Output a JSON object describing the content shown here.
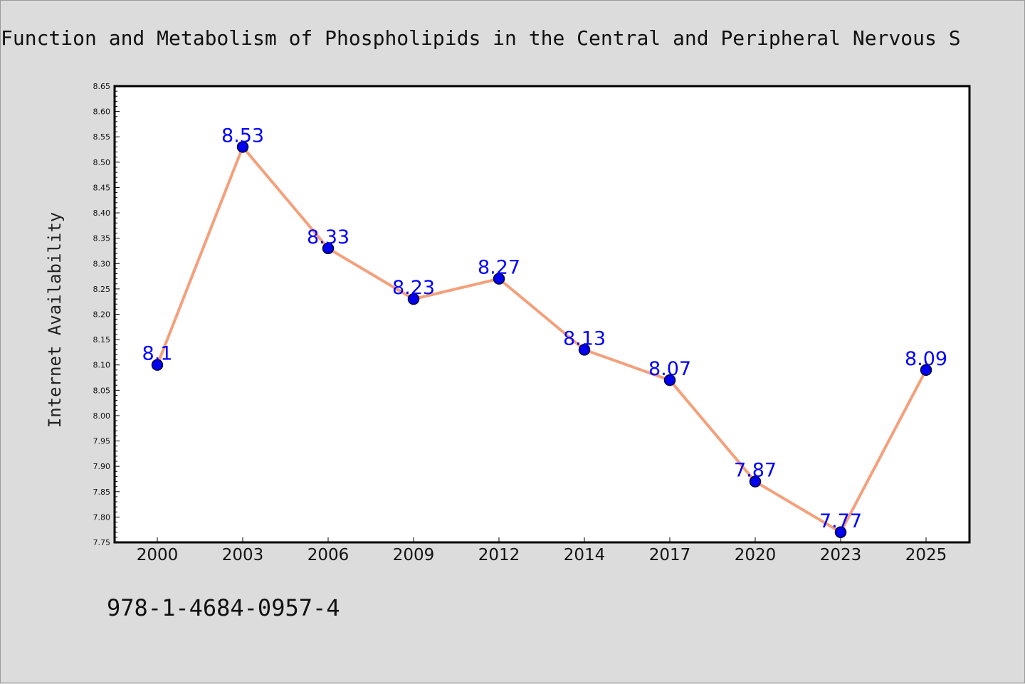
{
  "chart_data": {
    "type": "line",
    "title": "Function and Metabolism of Phospholipids in the Central and Peripheral Nervous S",
    "xlabel": "",
    "ylabel": "Internet Availability",
    "categories": [
      "2000",
      "2003",
      "2006",
      "2009",
      "2012",
      "2014",
      "2017",
      "2020",
      "2023",
      "2025"
    ],
    "series": [
      {
        "values": [
          8.1,
          8.53,
          8.33,
          8.23,
          8.27,
          8.13,
          8.07,
          7.87,
          7.77,
          8.09
        ],
        "labels": [
          "8.1",
          "8.53",
          "8.33",
          "8.23",
          "8.27",
          "8.13",
          "8.07",
          "7.87",
          "7.77",
          "8.09"
        ]
      }
    ],
    "ylim": [
      7.75,
      8.65
    ],
    "yticks": [
      "7.75",
      "7.80",
      "7.85",
      "7.90",
      "7.95",
      "8.00",
      "8.05",
      "8.10",
      "8.15",
      "8.20",
      "8.25",
      "8.30",
      "8.35",
      "8.40",
      "8.45",
      "8.50",
      "8.55",
      "8.60",
      "8.65"
    ],
    "grid": false,
    "legend": "none",
    "colors": {
      "line": "#f4a07c",
      "marker": "#0000ee",
      "marker_edge": "#000033",
      "label": "#0000ff",
      "background": "#dcdcdc",
      "plot_area": "#ffffff"
    }
  },
  "footer": {
    "isbn": "978-1-4684-0957-4"
  }
}
